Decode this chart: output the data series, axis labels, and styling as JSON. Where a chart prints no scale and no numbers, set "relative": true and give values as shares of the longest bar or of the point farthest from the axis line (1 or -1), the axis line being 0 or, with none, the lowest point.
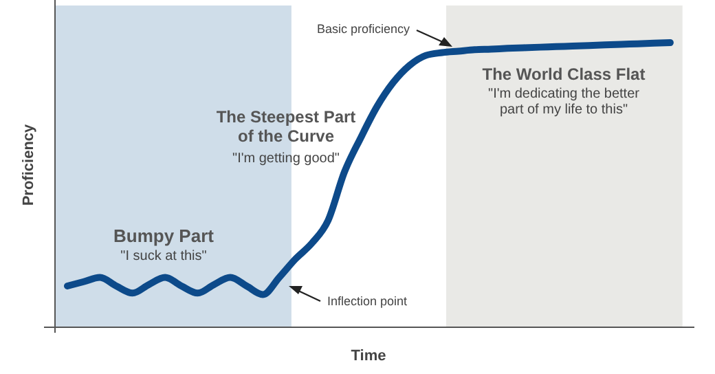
{
  "chart_data": {
    "type": "line",
    "relative": true,
    "xlabel": "Time",
    "ylabel": "Proficiency",
    "categories": [
      null,
      null,
      null,
      null,
      null,
      null,
      null,
      null,
      null,
      null,
      null,
      null,
      null,
      null,
      null,
      null,
      null,
      null,
      null,
      null,
      null,
      null,
      null,
      null,
      null,
      null,
      null,
      null,
      null,
      null,
      null,
      null,
      null,
      null,
      null,
      null,
      null,
      null
    ],
    "series": [
      {
        "color": "#0d4a8a",
        "values": [
          0.145,
          0.16,
          0.175,
          0.145,
          0.12,
          0.15,
          0.175,
          0.145,
          0.12,
          0.15,
          0.175,
          0.145,
          0.115,
          0.175,
          0.24,
          0.295,
          0.375,
          0.545,
          0.665,
          0.775,
          0.86,
          0.92,
          0.955,
          0.965,
          0.97,
          0.975,
          0.977,
          0.98,
          0.982,
          0.984,
          0.986,
          0.988,
          0.99,
          0.992,
          0.994,
          0.996,
          0.998,
          1
        ]
      }
    ],
    "annotations": [
      "Bumpy Part",
      "\"I suck at this\"",
      "The Steepest Part\nof the Curve",
      "\"I'm getting good\"",
      "The World Class Flat",
      "\"I'm dedicating the better\npart of my life to this\"",
      "Basic proficiency",
      "Inflection point"
    ],
    "grid": false,
    "marker": "none",
    "line_style": "solid"
  }
}
